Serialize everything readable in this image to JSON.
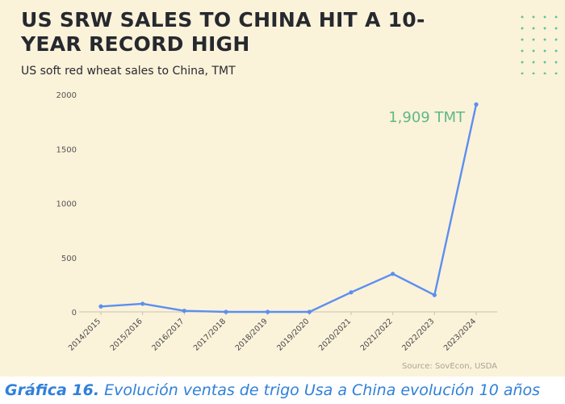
{
  "chart_data": {
    "type": "line",
    "title": "US SRW SALES TO CHINA HIT A 10-YEAR RECORD HIGH",
    "subtitle": "US soft red wheat sales to China, TMT",
    "x": [
      "2014/2015",
      "2015/2016",
      "2016/2017",
      "2017/2018",
      "2018/2019",
      "2019/2020",
      "2020/2021",
      "2021/2022",
      "2022/2023",
      "2023/2024"
    ],
    "series": [
      {
        "values": [
          50,
          75,
          10,
          0,
          0,
          0,
          180,
          350,
          155,
          1909
        ]
      }
    ],
    "yticks": [
      0,
      500,
      1000,
      1500,
      2000
    ],
    "ylim": [
      0,
      2000
    ],
    "grid": false,
    "annotation": "1,909 TMT",
    "source": "Source: SovEcon, USDA",
    "colors": {
      "line": "#5b8ff0",
      "annotation": "#5fb985",
      "background": "#fbf2da"
    }
  },
  "caption": {
    "label": "Gráfica 16.",
    "text": " Evolución ventas de trigo Usa a China evolución 10 años"
  }
}
